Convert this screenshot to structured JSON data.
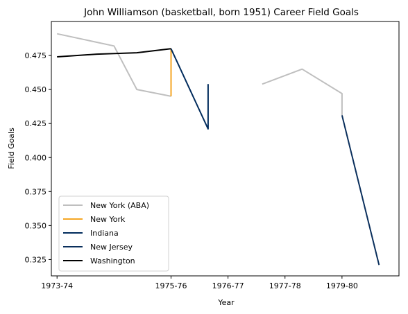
{
  "chart_data": {
    "type": "line",
    "title": "John Williamson (basketball, born 1951) Career Field Goals",
    "xlabel": "Year",
    "ylabel": "Field Goals",
    "x_ticks": [
      "1973-74",
      "1975-76",
      "1976-77",
      "1977-78",
      "1979-80"
    ],
    "x_tick_positions": [
      0,
      2,
      3,
      4,
      5
    ],
    "xlim": [
      -0.1,
      6.0
    ],
    "y_ticks": [
      "0.325",
      "0.350",
      "0.375",
      "0.400",
      "0.425",
      "0.450",
      "0.475"
    ],
    "ylim": [
      0.313,
      0.5
    ],
    "grid": false,
    "legend_position": "lower-left",
    "series": [
      {
        "name": "New York (ABA)",
        "color": "#bfbfbf",
        "points": [
          [
            0,
            0.491
          ],
          [
            1,
            0.482
          ],
          [
            1.4,
            0.45
          ],
          [
            2,
            0.445
          ]
        ],
        "segments": [
          [
            [
              3.6,
              0.454
            ],
            [
              4.3,
              0.465
            ],
            [
              5,
              0.447
            ],
            [
              5,
              0.431
            ]
          ]
        ]
      },
      {
        "name": "New York",
        "color": "#f5a623",
        "points": [
          [
            2,
            0.445
          ],
          [
            2,
            0.48
          ]
        ]
      },
      {
        "name": "Indiana",
        "color": "#002b5c",
        "points": [
          [
            2,
            0.48
          ],
          [
            2.65,
            0.421
          ],
          [
            2.65,
            0.454
          ]
        ]
      },
      {
        "name": "New Jersey",
        "color": "#0a2f5c",
        "points": [
          [
            5,
            0.431
          ],
          [
            5.65,
            0.321
          ]
        ]
      },
      {
        "name": "Washington",
        "color": "#000000",
        "points": [
          [
            0,
            0.474
          ],
          [
            0.7,
            0.476
          ],
          [
            1.4,
            0.477
          ],
          [
            2,
            0.48
          ]
        ]
      }
    ]
  }
}
